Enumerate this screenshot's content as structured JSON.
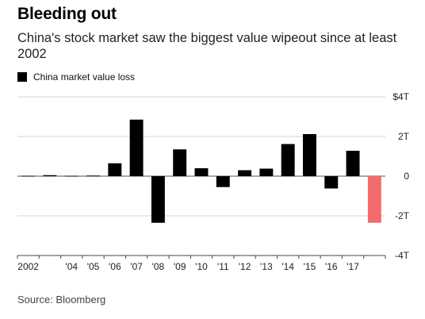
{
  "title": "Bleeding out",
  "subtitle": "China's stock market saw the biggest value wipeout since at least 2002",
  "source": "Source: Bloomberg",
  "colors": {
    "bar": "#000000",
    "highlight": "#f46b6b",
    "grid": "#d4d4d4",
    "zero": "#555555",
    "axis": "#444444"
  },
  "chart_data": {
    "type": "bar",
    "x_tick_labels": [
      "2002",
      "",
      "'04",
      "'05",
      "'06",
      "'07",
      "'08",
      "'09",
      "'10",
      "'11",
      "'12",
      "'13",
      "'14",
      "'15",
      "'16",
      "'17",
      ""
    ],
    "y_tick_labels": [
      "$4T",
      "2T",
      "0",
      "-2T",
      "-4T"
    ],
    "ylim": [
      -4,
      4
    ],
    "grid": true,
    "legend": {
      "position": "top-left",
      "entries": [
        "China market value loss"
      ]
    },
    "series": [
      {
        "name": "China market value loss",
        "values": [
          0.02,
          0.05,
          0.02,
          0.03,
          0.65,
          2.85,
          -2.35,
          1.35,
          0.4,
          -0.55,
          0.3,
          0.38,
          1.62,
          2.12,
          -0.62,
          1.28,
          -2.35
        ],
        "highlight_index": 16
      }
    ],
    "xlabel": "",
    "ylabel": ""
  }
}
